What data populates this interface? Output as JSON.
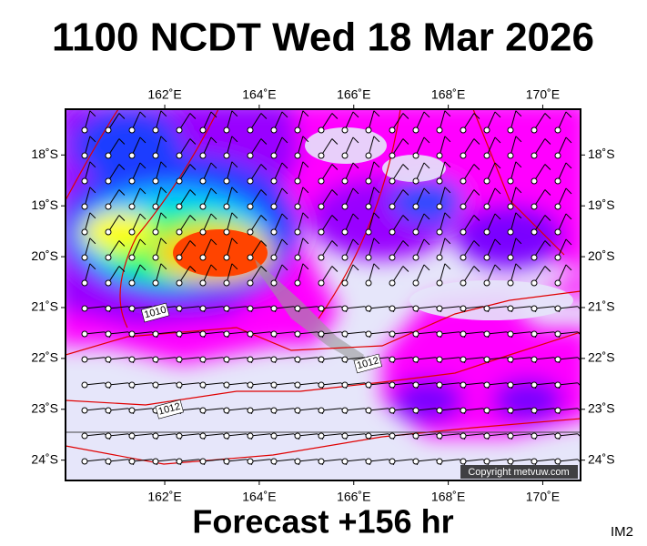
{
  "header": {
    "title": "1100 NCDT Wed 18 Mar 2026"
  },
  "footer": {
    "forecast": "Forecast +156 hr",
    "code": "IM2",
    "copyright": "Copyright metvuw.com"
  },
  "map": {
    "lon_range": [
      159.9,
      170.8
    ],
    "lat_range": [
      -17.1,
      -24.4
    ],
    "lon_ticks": [
      {
        "value": 162,
        "label": "162˚E"
      },
      {
        "value": 164,
        "label": "164˚E"
      },
      {
        "value": 166,
        "label": "166˚E"
      },
      {
        "value": 168,
        "label": "168˚E"
      },
      {
        "value": 170,
        "label": "170˚E"
      }
    ],
    "lat_ticks": [
      {
        "value": -18,
        "label": "18˚S"
      },
      {
        "value": -19,
        "label": "19˚S"
      },
      {
        "value": -20,
        "label": "20˚S"
      },
      {
        "value": -21,
        "label": "21˚S"
      },
      {
        "value": -22,
        "label": "22˚S"
      },
      {
        "value": -23,
        "label": "23˚S"
      },
      {
        "value": -24,
        "label": "24˚S"
      }
    ],
    "isobar_labels": [
      {
        "text": "1010",
        "lon": 161.8,
        "lat": -21.1
      },
      {
        "text": "1012",
        "lon": 166.3,
        "lat": -22.1
      },
      {
        "text": "1012",
        "lon": 162.1,
        "lat": -23.0
      }
    ]
  }
}
